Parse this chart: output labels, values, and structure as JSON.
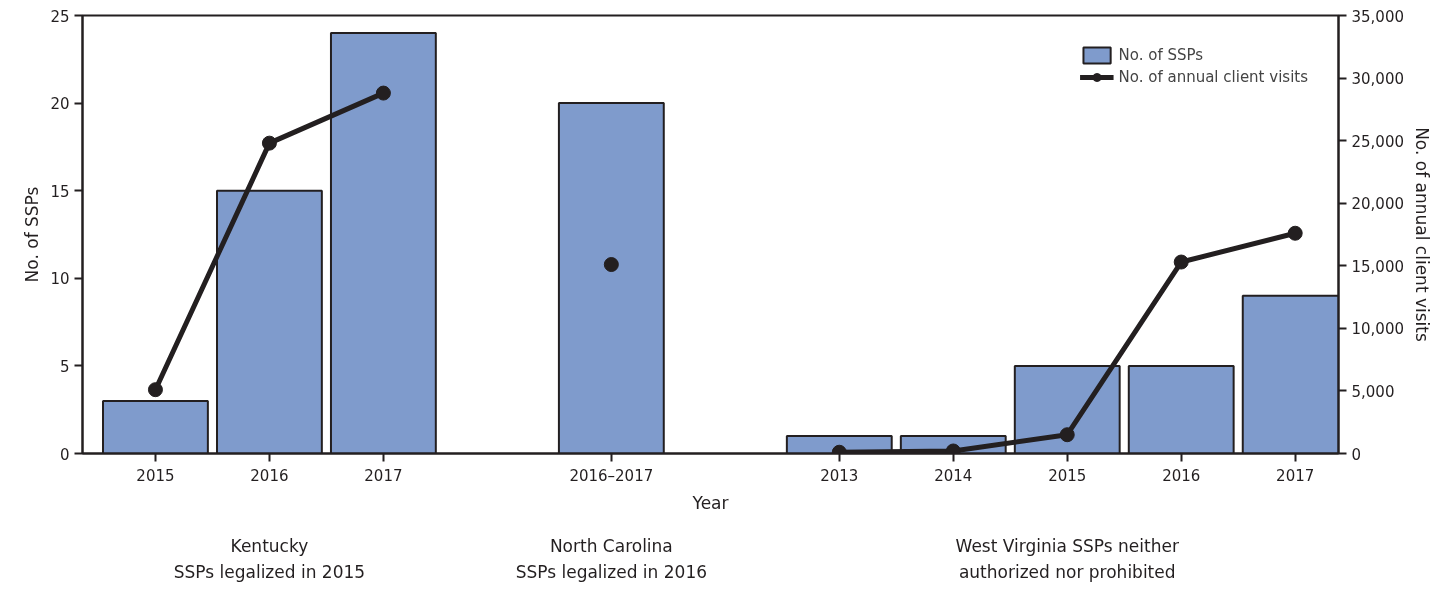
{
  "chart_data": {
    "type": "bar",
    "xlabel": "Year",
    "ylabel": "No. of SSPs",
    "y2label": "No. of annual client visits",
    "categories": [
      "2015",
      "2016",
      "2017",
      null,
      "2016–2017",
      null,
      "2013",
      "2014",
      "2015",
      "2016",
      "2017"
    ],
    "series": [
      {
        "name": "No. of SSPs",
        "color": "#7f9bcc",
        "values": [
          3,
          15,
          24,
          null,
          20,
          null,
          1,
          1,
          5,
          5,
          9
        ]
      },
      {
        "name": "No. of annual client visits",
        "type": "line",
        "axis": "y2",
        "color": "#231f20",
        "marker": "circle",
        "values": [
          5100,
          24800,
          28800,
          null,
          15100,
          null,
          100,
          200,
          1500,
          15300,
          17600
        ]
      }
    ],
    "ylim": [
      0,
      25
    ],
    "yticks": [
      0,
      5,
      10,
      15,
      20,
      25
    ],
    "y2lim": [
      0,
      35000
    ],
    "y2ticks": [
      0,
      {
        "value": 5000,
        "label": "5,000"
      },
      {
        "value": 10000,
        "label": "10,000"
      },
      {
        "value": 15000,
        "label": "15,000"
      },
      {
        "value": 20000,
        "label": "20,000"
      },
      {
        "value": 25000,
        "label": "25,000"
      },
      {
        "value": 30000,
        "label": "30,000"
      },
      {
        "value": 35000,
        "label": "35,000"
      }
    ],
    "legend": "top right",
    "grid": false,
    "annotations": [
      "Kentucky\nSSPs legalized in 2015",
      "North Carolina\nSSPs legalized in 2016",
      "West Virginia SSPs neither\nauthorized nor prohibited"
    ]
  }
}
